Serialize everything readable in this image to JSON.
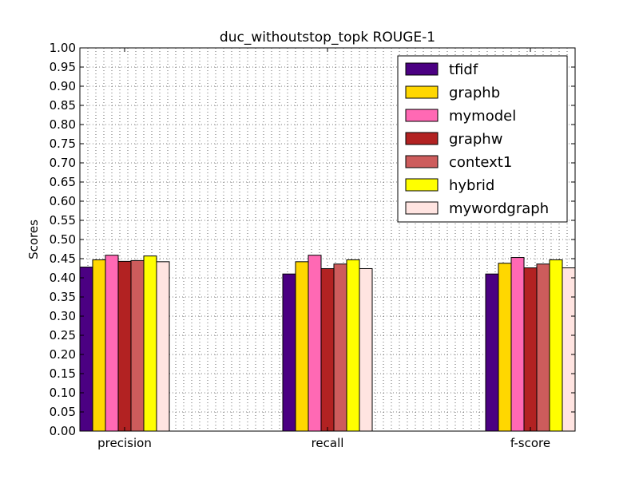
{
  "chart_data": {
    "type": "bar",
    "title": "duc_withoutstop_topk ROUGE-1",
    "xlabel": "",
    "ylabel": "Scores",
    "ylim": [
      0,
      1.0
    ],
    "yticks": [
      "0.00",
      "0.05",
      "0.10",
      "0.15",
      "0.20",
      "0.25",
      "0.30",
      "0.35",
      "0.40",
      "0.45",
      "0.50",
      "0.55",
      "0.60",
      "0.65",
      "0.70",
      "0.75",
      "0.80",
      "0.85",
      "0.90",
      "0.95",
      "1.00"
    ],
    "categories": [
      "precision",
      "recall",
      "f-score"
    ],
    "grid": true,
    "legend_position": "top-right",
    "series": [
      {
        "name": "tfidf",
        "color": "#4B0082",
        "values": [
          0.428,
          0.41,
          0.41
        ]
      },
      {
        "name": "graphb",
        "color": "#FFD700",
        "values": [
          0.447,
          0.442,
          0.438
        ]
      },
      {
        "name": "mymodel",
        "color": "#FF69B4",
        "values": [
          0.459,
          0.459,
          0.453
        ]
      },
      {
        "name": "graphw",
        "color": "#B22222",
        "values": [
          0.443,
          0.424,
          0.426
        ]
      },
      {
        "name": "context1",
        "color": "#CD5C5C",
        "values": [
          0.445,
          0.436,
          0.436
        ]
      },
      {
        "name": "hybrid",
        "color": "#FFFF00",
        "values": [
          0.457,
          0.447,
          0.447
        ]
      },
      {
        "name": "mywordgraph",
        "color": "#FFE4E1",
        "values": [
          0.442,
          0.424,
          0.426
        ]
      }
    ]
  }
}
